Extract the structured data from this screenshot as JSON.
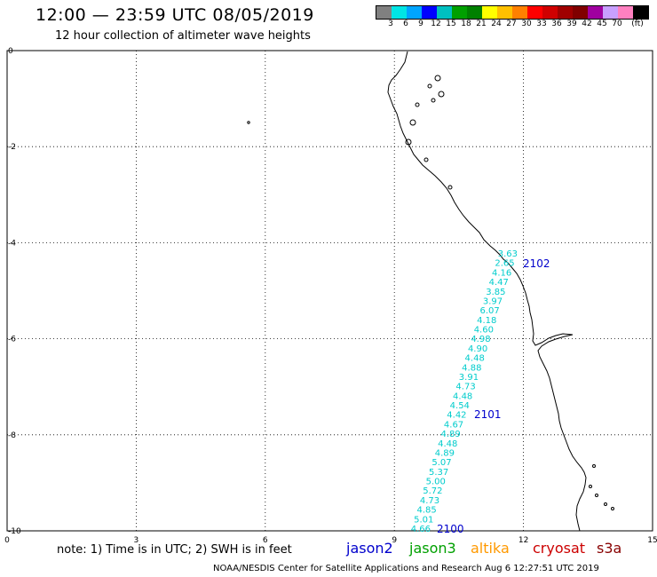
{
  "header": {
    "title": "12:00 — 23:59 UTC 08/05/2019",
    "subtitle": "12 hour collection of altimeter wave heights"
  },
  "colorbar": {
    "swatches": [
      "#808080",
      "#00e5e5",
      "#00a5ff",
      "#0000ff",
      "#00c0c0",
      "#00a000",
      "#008000",
      "#ffff00",
      "#ffc000",
      "#ff8000",
      "#ff0000",
      "#d00000",
      "#a00000",
      "#800000",
      "#a000a0",
      "#c8a0ff",
      "#ff80c0",
      "#000000"
    ],
    "labels": [
      "3",
      "6",
      "9",
      "12",
      "15",
      "18",
      "21",
      "24",
      "27",
      "30",
      "33",
      "36",
      "39",
      "42",
      "45",
      "70",
      "(ft)"
    ]
  },
  "axes": {
    "x_ticks": [
      "0",
      "3",
      "6",
      "9",
      "12",
      "15"
    ],
    "y_ticks": [
      "0",
      "-2",
      "-4",
      "-6",
      "-8",
      "-10"
    ]
  },
  "passes": [
    {
      "label": "2102",
      "color": "#0000cc"
    },
    {
      "label": "2101",
      "color": "#0000cc"
    },
    {
      "label": "2100",
      "color": "#0000cc"
    }
  ],
  "wave_track": {
    "color": "#00cccc",
    "values": [
      "3.63",
      "2.65",
      "4.16",
      "4.47",
      "3.85",
      "3.97",
      "6.07",
      "4.18",
      "4.60",
      "4.98",
      "4.90",
      "4.48",
      "4.88",
      "3.91",
      "4.73",
      "4.48",
      "4.54",
      "4.42",
      "4.67",
      "4.89",
      "4.48",
      "4.89",
      "5.07",
      "5.37",
      "5.00",
      "5.72",
      "4.73",
      "4.85",
      "5.01",
      "4.66"
    ]
  },
  "note": "note: 1) Time is in UTC; 2) SWH is in feet",
  "satellites": [
    {
      "name": "jason2",
      "color": "#0000cc"
    },
    {
      "name": "jason3",
      "color": "#00a000"
    },
    {
      "name": "altika",
      "color": "#ff9900"
    },
    {
      "name": "cryosat",
      "color": "#cc0000"
    },
    {
      "name": "s3a",
      "color": "#880000"
    }
  ],
  "footer": "NOAA/NESDIS Center for Satellite Applications and Research   Aug  6 12:27:51 UTC 2019"
}
